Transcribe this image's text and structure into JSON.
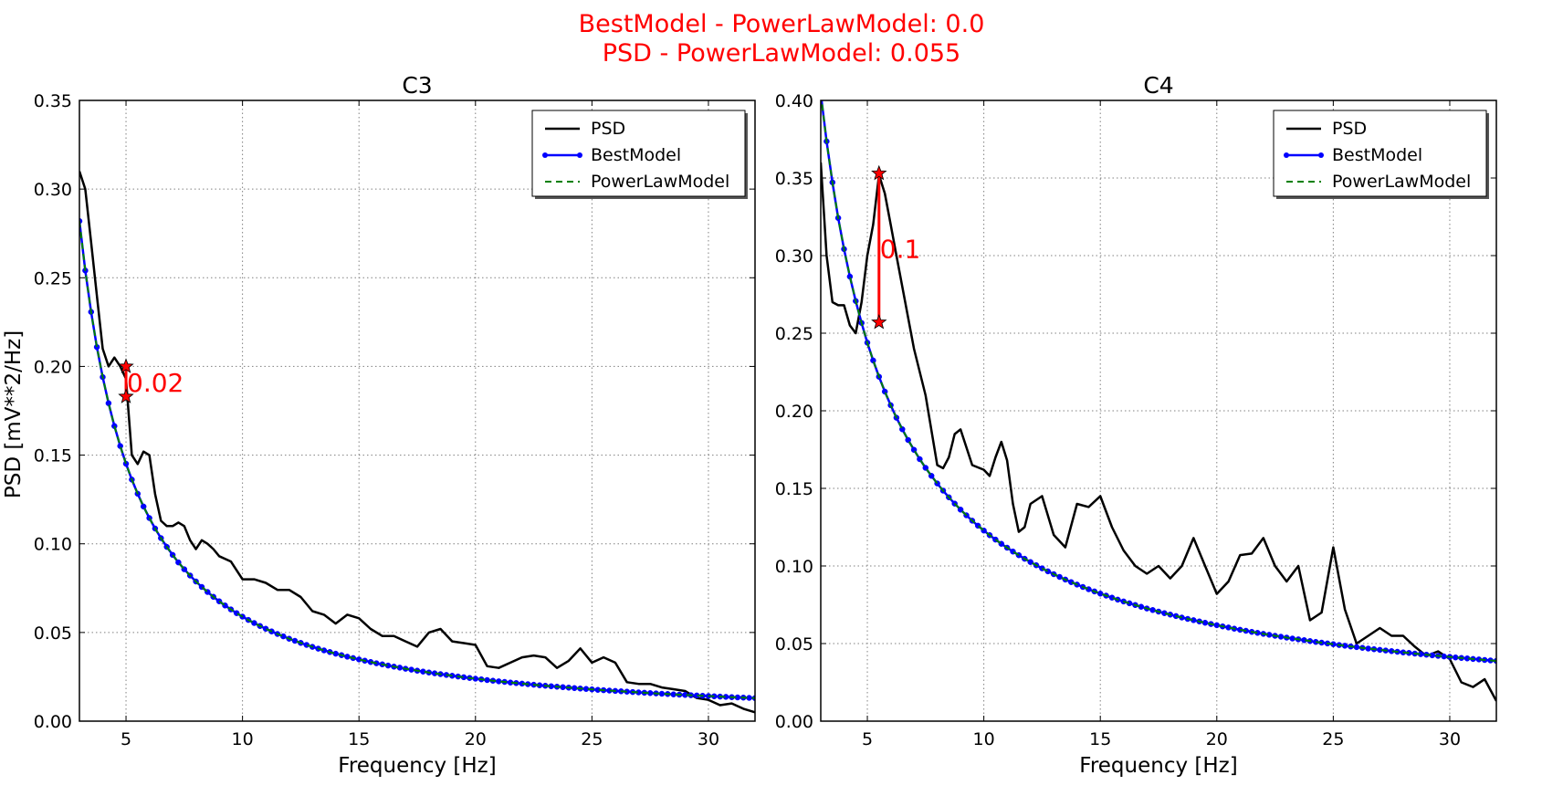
{
  "suptitle": {
    "line1": "BestModel - PowerLawModel: 0.0",
    "line2": "PSD - PowerLawModel: 0.055",
    "color": "#ff0000"
  },
  "shared_ylabel": "PSD [mV**2/Hz]",
  "colors": {
    "psd": "#000000",
    "best": "#0000ff",
    "power": "#008000",
    "annot": "#ff0000",
    "grid": "#808080"
  },
  "chart_data": [
    {
      "type": "line",
      "title": "C3",
      "xlabel": "Frequency [Hz]",
      "ylabel": "PSD [mV**2/Hz]",
      "xlim": [
        3,
        32
      ],
      "ylim": [
        0,
        0.35
      ],
      "xticks": [
        5,
        10,
        15,
        20,
        25,
        30
      ],
      "xtick_labels": [
        "5",
        "10",
        "15",
        "20",
        "25",
        "30"
      ],
      "yticks": [
        0,
        0.05,
        0.1,
        0.15,
        0.2,
        0.25,
        0.3,
        0.35
      ],
      "ytick_labels": [
        "0.00",
        "0.05",
        "0.10",
        "0.15",
        "0.20",
        "0.25",
        "0.30",
        "0.35"
      ],
      "grid": true,
      "legend_position": "top-right",
      "legend": [
        "PSD",
        "BestModel",
        "PowerLawModel"
      ],
      "model": {
        "a": 1.176,
        "b": 1.3,
        "x_start": 3,
        "x_end": 32,
        "n_points": 117
      },
      "series": [
        {
          "name": "PSD",
          "x": [
            3.0,
            3.25,
            3.5,
            3.75,
            4.0,
            4.25,
            4.5,
            4.75,
            5.0,
            5.25,
            5.5,
            5.75,
            6.0,
            6.25,
            6.5,
            6.75,
            7.0,
            7.25,
            7.5,
            7.75,
            8.0,
            8.25,
            8.5,
            8.75,
            9.0,
            9.5,
            10.0,
            10.5,
            11.0,
            11.5,
            12.0,
            12.5,
            13.0,
            13.5,
            14.0,
            14.5,
            15.0,
            15.5,
            16.0,
            16.5,
            17.0,
            17.5,
            18.0,
            18.5,
            19.0,
            19.5,
            20.0,
            20.5,
            21.0,
            21.5,
            22.0,
            22.5,
            23.0,
            23.5,
            24.0,
            24.5,
            25.0,
            25.5,
            26.0,
            26.5,
            27.0,
            27.5,
            28.0,
            28.5,
            29.0,
            29.5,
            30.0,
            30.5,
            31.0,
            31.5,
            32.0
          ],
          "y": [
            0.31,
            0.3,
            0.27,
            0.24,
            0.21,
            0.2,
            0.205,
            0.2,
            0.193,
            0.15,
            0.145,
            0.152,
            0.15,
            0.128,
            0.113,
            0.11,
            0.11,
            0.112,
            0.11,
            0.102,
            0.097,
            0.102,
            0.1,
            0.097,
            0.093,
            0.09,
            0.08,
            0.08,
            0.078,
            0.074,
            0.074,
            0.07,
            0.062,
            0.06,
            0.055,
            0.06,
            0.058,
            0.052,
            0.048,
            0.048,
            0.045,
            0.042,
            0.05,
            0.052,
            0.045,
            0.044,
            0.043,
            0.031,
            0.03,
            0.033,
            0.036,
            0.037,
            0.036,
            0.03,
            0.034,
            0.041,
            0.033,
            0.036,
            0.033,
            0.022,
            0.021,
            0.021,
            0.019,
            0.018,
            0.017,
            0.013,
            0.012,
            0.009,
            0.01,
            0.007,
            0.005
          ]
        },
        {
          "name": "BestModel",
          "marker": "circle"
        },
        {
          "name": "PowerLawModel",
          "style": "dashed"
        }
      ],
      "annotation": {
        "x": 5.0,
        "y_top": 0.2,
        "y_bottom": 0.183,
        "label": "0.02"
      }
    },
    {
      "type": "line",
      "title": "C4",
      "xlabel": "Frequency [Hz]",
      "xlim": [
        3,
        32
      ],
      "ylim": [
        0,
        0.4
      ],
      "xticks": [
        5,
        10,
        15,
        20,
        25,
        30
      ],
      "xtick_labels": [
        "5",
        "10",
        "15",
        "20",
        "25",
        "30"
      ],
      "yticks": [
        0,
        0.05,
        0.1,
        0.15,
        0.2,
        0.25,
        0.3,
        0.35,
        0.4
      ],
      "ytick_labels": [
        "0.00",
        "0.05",
        "0.10",
        "0.15",
        "0.20",
        "0.25",
        "0.30",
        "0.35",
        "0.40"
      ],
      "grid": true,
      "legend_position": "top-right",
      "legend": [
        "PSD",
        "BestModel",
        "PowerLawModel"
      ],
      "model": {
        "a": 1.2,
        "b": 0.99,
        "x_start": 3,
        "x_end": 32,
        "n_points": 117
      },
      "series": [
        {
          "name": "PSD",
          "x": [
            3.0,
            3.25,
            3.5,
            3.75,
            4.0,
            4.25,
            4.5,
            4.75,
            5.0,
            5.25,
            5.5,
            5.75,
            6.0,
            6.25,
            6.5,
            6.75,
            7.0,
            7.5,
            8.0,
            8.25,
            8.5,
            8.75,
            9.0,
            9.5,
            10.0,
            10.25,
            10.5,
            10.75,
            11.0,
            11.25,
            11.5,
            11.75,
            12.0,
            12.5,
            13.0,
            13.5,
            14.0,
            14.5,
            15.0,
            15.5,
            16.0,
            16.5,
            17.0,
            17.5,
            18.0,
            18.5,
            19.0,
            19.5,
            20.0,
            20.5,
            21.0,
            21.5,
            22.0,
            22.5,
            23.0,
            23.5,
            24.0,
            24.5,
            25.0,
            25.5,
            26.0,
            26.5,
            27.0,
            27.5,
            28.0,
            28.5,
            29.0,
            29.5,
            30.0,
            30.5,
            31.0,
            31.5,
            32.0
          ],
          "y": [
            0.36,
            0.3,
            0.27,
            0.268,
            0.268,
            0.255,
            0.25,
            0.27,
            0.3,
            0.32,
            0.352,
            0.34,
            0.32,
            0.3,
            0.28,
            0.26,
            0.24,
            0.21,
            0.165,
            0.163,
            0.17,
            0.185,
            0.188,
            0.165,
            0.162,
            0.158,
            0.17,
            0.18,
            0.168,
            0.14,
            0.122,
            0.125,
            0.14,
            0.145,
            0.12,
            0.112,
            0.14,
            0.138,
            0.145,
            0.125,
            0.11,
            0.1,
            0.095,
            0.1,
            0.092,
            0.1,
            0.118,
            0.1,
            0.082,
            0.09,
            0.107,
            0.108,
            0.118,
            0.1,
            0.09,
            0.1,
            0.065,
            0.07,
            0.112,
            0.072,
            0.05,
            0.055,
            0.06,
            0.055,
            0.055,
            0.048,
            0.042,
            0.045,
            0.04,
            0.025,
            0.022,
            0.027,
            0.013
          ]
        },
        {
          "name": "BestModel",
          "marker": "circle"
        },
        {
          "name": "PowerLawModel",
          "style": "dashed"
        }
      ],
      "annotation": {
        "x": 5.5,
        "y_top": 0.353,
        "y_bottom": 0.257,
        "label": "0.1"
      }
    }
  ]
}
